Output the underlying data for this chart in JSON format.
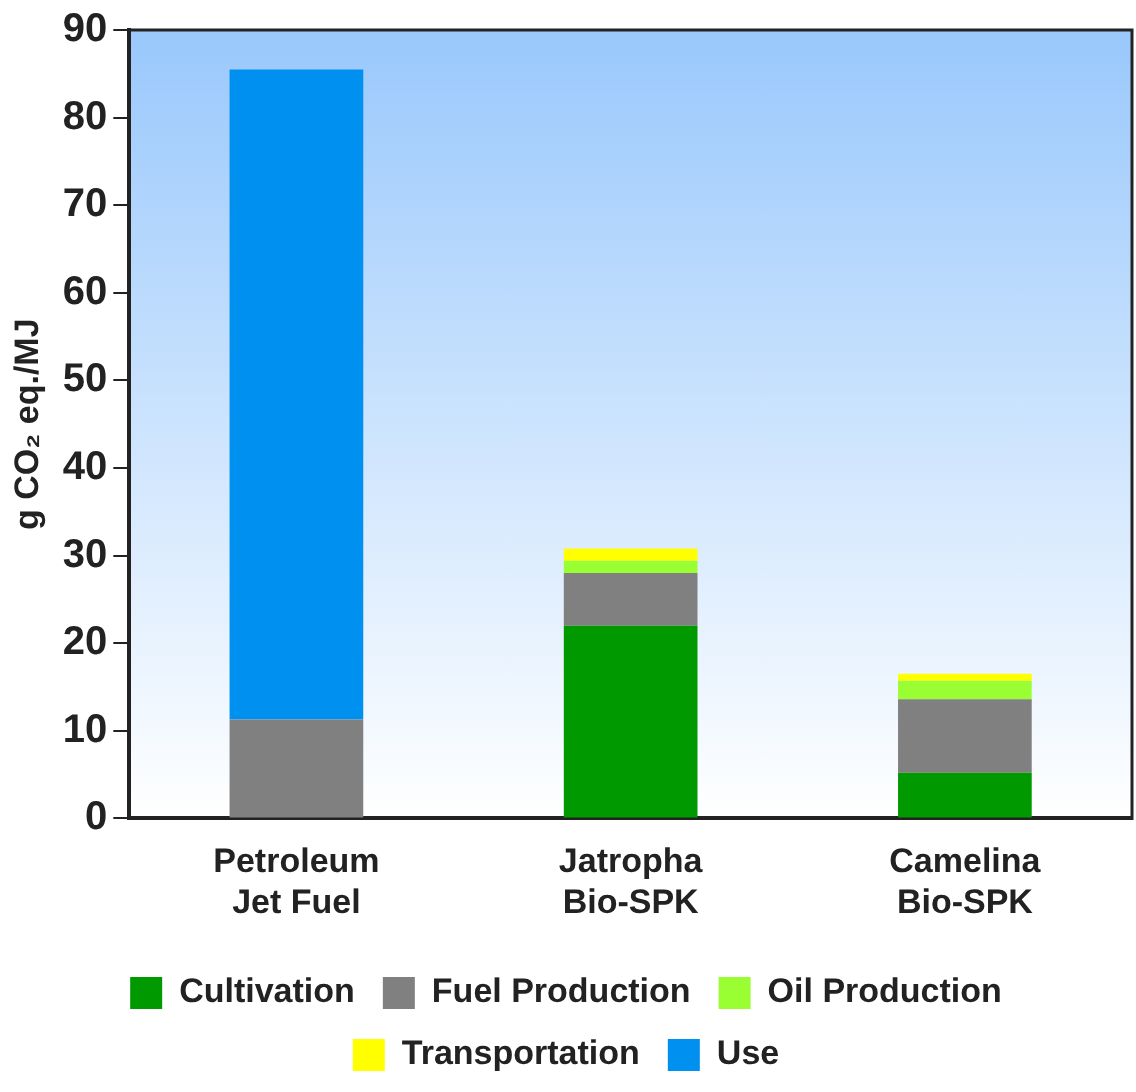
{
  "chart_data": {
    "type": "bar",
    "stacked": true,
    "ylabel": "g CO₂ eq./MJ",
    "categories": [
      "Petroleum\nJet Fuel",
      "Jatropha\nBio-SPK",
      "Camelina\nBio-SPK"
    ],
    "series": [
      {
        "name": "Cultivation",
        "color": "#009900",
        "values": [
          null,
          22,
          5.2
        ]
      },
      {
        "name": "Fuel Production",
        "color": "#808080",
        "values": [
          11.3,
          6,
          8.4
        ]
      },
      {
        "name": "Oil Production",
        "color": "#99ff33",
        "values": [
          null,
          1.4,
          2.1
        ]
      },
      {
        "name": "Transportation",
        "color": "#ffff00",
        "values": [
          null,
          1.4,
          0.8
        ]
      },
      {
        "name": "Use",
        "color": "#0090f0",
        "values": [
          74.2,
          null,
          null
        ]
      }
    ],
    "ylim": [
      0,
      90
    ],
    "yticks": [
      0,
      10,
      20,
      30,
      40,
      50,
      60,
      70,
      80,
      90
    ],
    "grid": false,
    "legend": "bottom"
  }
}
